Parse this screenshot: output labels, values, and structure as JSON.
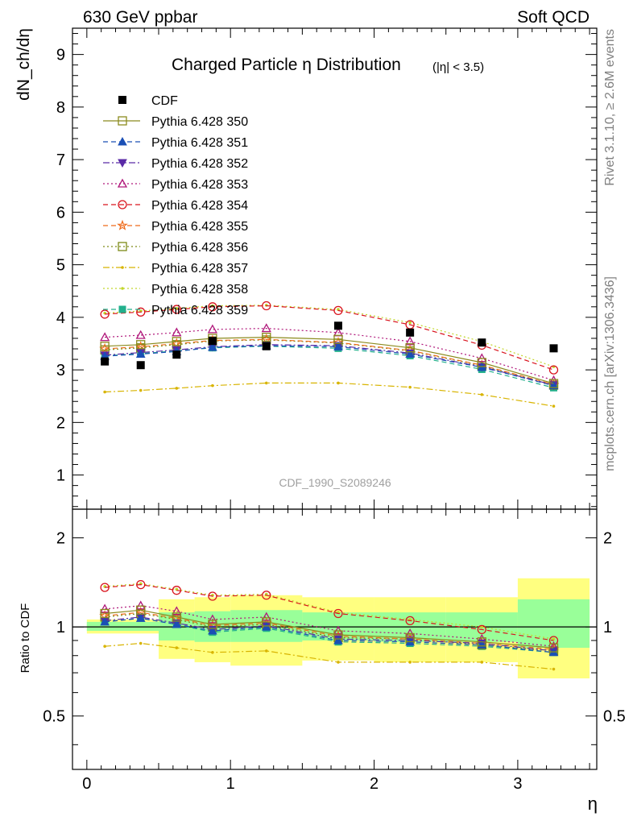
{
  "header": {
    "left": "630 GeV ppbar",
    "right": "Soft QCD"
  },
  "side_labels": {
    "rivet": "Rivet 3.1.10, ≥ 2.6M events",
    "mcplots": "mcplots.cern.ch [arXiv:1306.3436]"
  },
  "chart_data": [
    {
      "type": "scatter",
      "title": "Charged Particle η Distribution",
      "title_suffix": "(|η| < 3.5)",
      "analysis_tag": "CDF_1990_S2089246",
      "ylabel": "dN_ch/dη",
      "xlim": [
        -0.1,
        3.55
      ],
      "ylim": [
        0.35,
        9.5
      ],
      "yticks": [
        1,
        2,
        3,
        4,
        5,
        6,
        7,
        8,
        9
      ],
      "x": [
        0.125,
        0.375,
        0.625,
        0.875,
        1.25,
        1.75,
        2.25,
        2.75,
        3.25
      ],
      "legend_position": "top-left",
      "data": {
        "name": "CDF",
        "color": "#000000",
        "values": [
          3.16,
          3.09,
          3.29,
          3.55,
          3.45,
          3.84,
          3.71,
          3.52,
          3.41
        ]
      },
      "series": [
        {
          "name": "Pythia 6.428 350",
          "color": "#8b8b1e",
          "dash": "solid",
          "marker": "open-square",
          "values": [
            3.45,
            3.48,
            3.54,
            3.6,
            3.62,
            3.58,
            3.42,
            3.14,
            2.74
          ]
        },
        {
          "name": "Pythia 6.428 351",
          "color": "#1a4fb5",
          "dash": "dashed",
          "marker": "filled-triangle-up",
          "values": [
            3.26,
            3.3,
            3.35,
            3.43,
            3.46,
            3.44,
            3.3,
            3.05,
            2.7
          ]
        },
        {
          "name": "Pythia 6.428 352",
          "color": "#5a2aa6",
          "dash": "dashdot",
          "marker": "filled-triangle-down",
          "values": [
            3.28,
            3.33,
            3.38,
            3.44,
            3.48,
            3.46,
            3.32,
            3.06,
            2.71
          ]
        },
        {
          "name": "Pythia 6.428 353",
          "color": "#b0177a",
          "dash": "dotted",
          "marker": "open-triangle-up",
          "values": [
            3.62,
            3.66,
            3.71,
            3.77,
            3.79,
            3.71,
            3.54,
            3.22,
            2.8
          ]
        },
        {
          "name": "Pythia 6.428 354",
          "color": "#d9141e",
          "dash": "dashed",
          "marker": "open-circle",
          "values": [
            4.06,
            4.1,
            4.15,
            4.2,
            4.22,
            4.13,
            3.86,
            3.47,
            3.0
          ]
        },
        {
          "name": "Pythia 6.428 355",
          "color": "#ef6a1a",
          "dash": "dashed",
          "marker": "open-star",
          "values": [
            3.4,
            3.44,
            3.5,
            3.56,
            3.58,
            3.52,
            3.37,
            3.09,
            2.72
          ]
        },
        {
          "name": "Pythia 6.428 356",
          "color": "#7d8a16",
          "dash": "dotted",
          "marker": "open-square",
          "values": [
            3.38,
            3.42,
            3.48,
            3.55,
            3.57,
            3.51,
            3.36,
            3.08,
            2.71
          ]
        },
        {
          "name": "Pythia 6.428 357",
          "color": "#d8b400",
          "dash": "dashdot",
          "marker": "small-dot",
          "values": [
            2.58,
            2.61,
            2.65,
            2.7,
            2.75,
            2.75,
            2.67,
            2.53,
            2.31
          ]
        },
        {
          "name": "Pythia 6.428 358",
          "color": "#c2d62a",
          "dash": "dotted",
          "marker": "small-dot",
          "values": [
            4.08,
            4.12,
            4.17,
            4.22,
            4.23,
            4.15,
            3.9,
            3.54,
            3.06
          ]
        },
        {
          "name": "Pythia 6.428 359",
          "color": "#22b08c",
          "dash": "dashed",
          "marker": "filled-square",
          "values": [
            3.27,
            3.31,
            3.36,
            3.42,
            3.45,
            3.41,
            3.27,
            3.01,
            2.66
          ]
        }
      ]
    },
    {
      "type": "scatter",
      "ylabel": "Ratio to CDF",
      "xlabel": "η",
      "ylim": [
        0.33,
        2.5
      ],
      "yticks": [
        0.5,
        1,
        2
      ],
      "xticks": [
        0,
        1,
        2,
        3
      ],
      "reference_line": 1,
      "uncertainty_bins": [
        {
          "x": [
            0.0,
            0.5
          ],
          "stat": [
            0.97,
            1.04
          ],
          "total": [
            0.95,
            1.06
          ]
        },
        {
          "x": [
            0.5,
            0.75
          ],
          "stat": [
            0.9,
            1.12
          ],
          "total": [
            0.78,
            1.24
          ]
        },
        {
          "x": [
            0.75,
            1.0
          ],
          "stat": [
            0.89,
            1.13
          ],
          "total": [
            0.76,
            1.26
          ]
        },
        {
          "x": [
            1.0,
            1.5
          ],
          "stat": [
            0.89,
            1.14
          ],
          "total": [
            0.74,
            1.28
          ]
        },
        {
          "x": [
            1.5,
            2.0
          ],
          "stat": [
            0.9,
            1.12
          ],
          "total": [
            0.77,
            1.26
          ]
        },
        {
          "x": [
            2.0,
            2.5
          ],
          "stat": [
            0.89,
            1.12
          ],
          "total": [
            0.76,
            1.26
          ]
        },
        {
          "x": [
            2.5,
            3.0
          ],
          "stat": [
            0.89,
            1.12
          ],
          "total": [
            0.76,
            1.26
          ]
        },
        {
          "x": [
            3.0,
            3.5
          ],
          "stat": [
            0.85,
            1.24
          ],
          "total": [
            0.67,
            1.46
          ]
        }
      ],
      "ratios": [
        {
          "name": "Pythia 6.428 350",
          "values": [
            1.11,
            1.14,
            1.08,
            1.02,
            1.04,
            0.94,
            0.92,
            0.89,
            0.85
          ]
        },
        {
          "name": "Pythia 6.428 351",
          "values": [
            1.04,
            1.07,
            1.02,
            0.97,
            1.0,
            0.9,
            0.89,
            0.87,
            0.82
          ]
        },
        {
          "name": "Pythia 6.428 352",
          "values": [
            1.05,
            1.08,
            1.03,
            0.98,
            1.01,
            0.91,
            0.9,
            0.88,
            0.83
          ]
        },
        {
          "name": "Pythia 6.428 353",
          "values": [
            1.15,
            1.18,
            1.13,
            1.06,
            1.08,
            0.97,
            0.95,
            0.91,
            0.86
          ]
        },
        {
          "name": "Pythia 6.428 354",
          "values": [
            1.36,
            1.39,
            1.33,
            1.27,
            1.28,
            1.11,
            1.05,
            0.98,
            0.9
          ]
        },
        {
          "name": "Pythia 6.428 355",
          "values": [
            1.09,
            1.12,
            1.07,
            1.01,
            1.03,
            0.93,
            0.91,
            0.88,
            0.84
          ]
        },
        {
          "name": "Pythia 6.428 356",
          "values": [
            1.08,
            1.11,
            1.06,
            1.0,
            1.02,
            0.92,
            0.91,
            0.87,
            0.83
          ]
        },
        {
          "name": "Pythia 6.428 357",
          "values": [
            0.86,
            0.88,
            0.85,
            0.82,
            0.83,
            0.76,
            0.76,
            0.76,
            0.72
          ]
        },
        {
          "name": "Pythia 6.428 358",
          "values": [
            1.37,
            1.4,
            1.34,
            1.28,
            1.29,
            1.12,
            1.06,
            1.0,
            0.91
          ]
        },
        {
          "name": "Pythia 6.428 359",
          "values": [
            1.04,
            1.07,
            1.02,
            0.96,
            0.99,
            0.89,
            0.88,
            0.86,
            0.82
          ]
        }
      ]
    }
  ]
}
